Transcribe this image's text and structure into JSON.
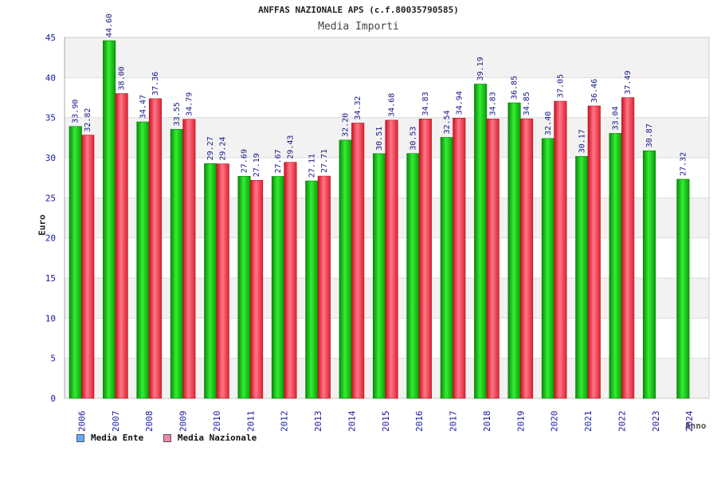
{
  "chart_data": {
    "type": "bar",
    "title": "ANFFAS NAZIONALE APS (c.f.80035790585)",
    "subtitle": "Media Importi",
    "xlabel": "Anno",
    "ylabel": "Euro",
    "ylim": [
      0,
      45
    ],
    "yticks": [
      "0",
      "5",
      "10",
      "15",
      "20",
      "25",
      "30",
      "35",
      "40",
      "45"
    ],
    "categories": [
      "2006",
      "2007",
      "2008",
      "2009",
      "2010",
      "2011",
      "2012",
      "2013",
      "2014",
      "2015",
      "2016",
      "2017",
      "2018",
      "2019",
      "2020",
      "2021",
      "2022",
      "2023",
      "2024"
    ],
    "series": [
      {
        "name": "Media Ente",
        "color": "#11cc11",
        "legend_color": "#66aaff",
        "values": [
          33.9,
          44.6,
          34.47,
          33.55,
          29.27,
          27.69,
          27.67,
          27.11,
          32.2,
          30.51,
          30.53,
          32.54,
          39.19,
          36.85,
          32.4,
          30.17,
          33.04,
          30.87,
          27.32
        ],
        "labels": [
          "33.90",
          "44.60",
          "34.47",
          "33.55",
          "29.27",
          "27.69",
          "27.67",
          "27.11",
          "32.20",
          "30.51",
          "30.53",
          "32.54",
          "39.19",
          "36.85",
          "32.40",
          "30.17",
          "33.04",
          "30.87",
          "27.32"
        ]
      },
      {
        "name": "Media Nazionale",
        "color": "#ee3344",
        "legend_color": "#ee88aa",
        "values": [
          32.82,
          38.0,
          37.36,
          34.79,
          29.24,
          27.19,
          29.43,
          27.71,
          34.32,
          34.68,
          34.83,
          34.94,
          34.83,
          34.85,
          37.05,
          36.46,
          37.49,
          null,
          null
        ],
        "labels": [
          "32.82",
          "38.00",
          "37.36",
          "34.79",
          "29.24",
          "27.19",
          "29.43",
          "27.71",
          "34.32",
          "34.68",
          "34.83",
          "34.94",
          "34.83",
          "34.85",
          "37.05",
          "36.46",
          "37.49",
          null,
          null
        ]
      }
    ],
    "grid": true,
    "legend": "bottom-left"
  }
}
